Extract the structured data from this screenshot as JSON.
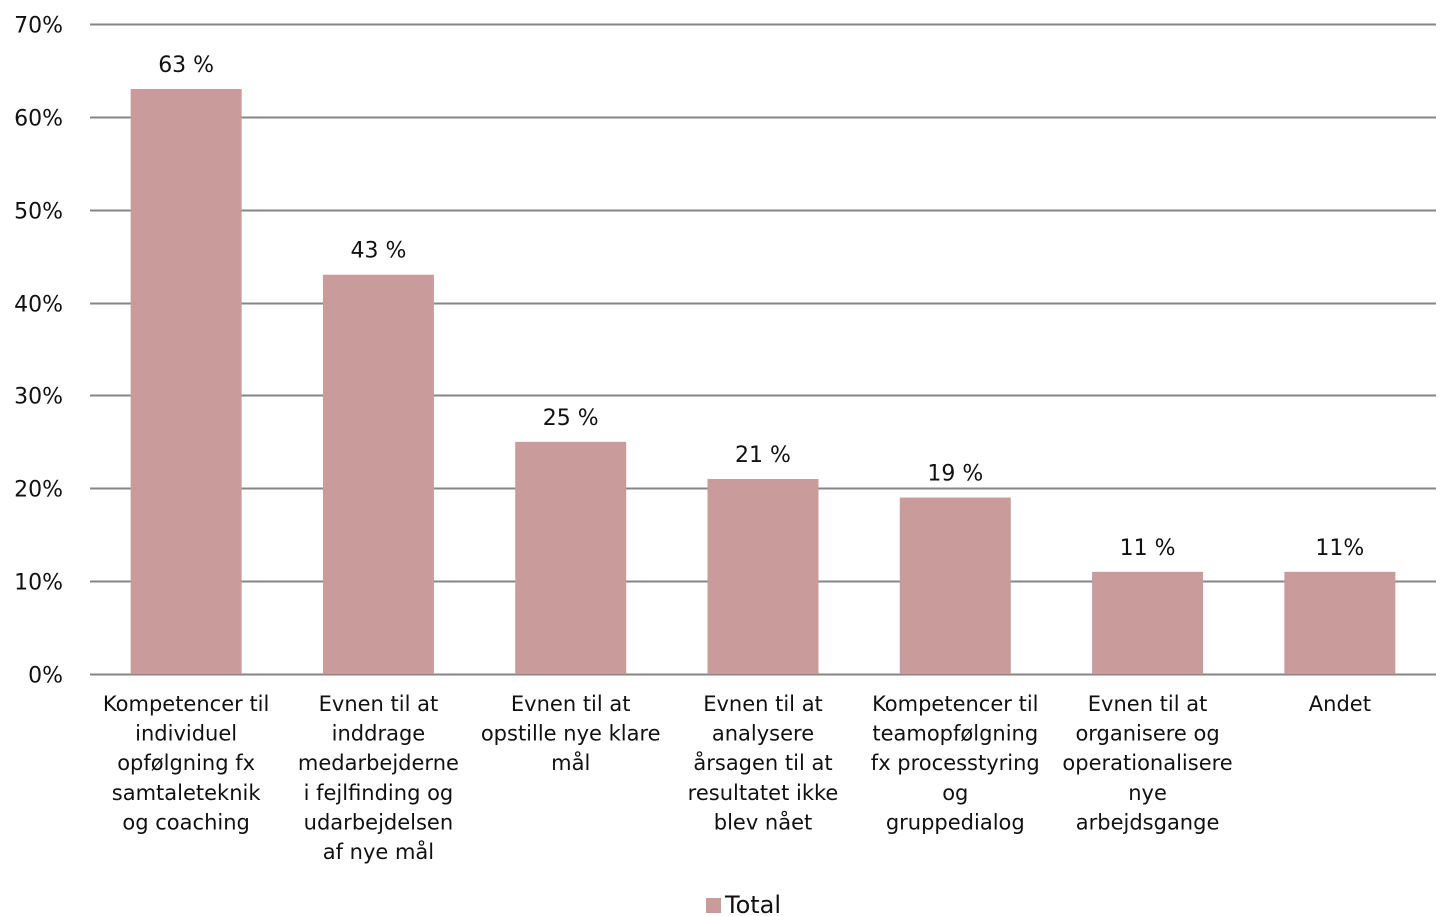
{
  "chart_data": {
    "type": "bar",
    "categories": [
      "Kompetencer til individuel opfølgning fx samtaleteknik og coaching",
      "Evnen til at inddrage medarbejderne i fejlfinding og udarbejdelsen af nye mål",
      "Evnen til at opstille nye klare mål",
      "Evnen til at analysere årsagen til at resultatet ikke blev nået",
      "Kompetencer til teamopfølgning fx processtyring og gruppedialog",
      "Evnen til at organisere og operationalisere nye arbejdsgange",
      "Andet"
    ],
    "category_lines": [
      [
        "Kompetencer til",
        "individuel",
        "opfølgning fx",
        "samtaleteknik",
        "og coaching"
      ],
      [
        "Evnen til at",
        "inddrage",
        "medarbejderne",
        "i fejlfinding og",
        "udarbejdelsen",
        "af nye mål"
      ],
      [
        "Evnen til at",
        "opstille nye klare",
        "mål"
      ],
      [
        "Evnen til at",
        "analysere",
        "årsagen til at",
        "resultatet ikke",
        "blev nået"
      ],
      [
        "Kompetencer til",
        "teamopfølgning",
        "fx processtyring",
        "og",
        "gruppedialog"
      ],
      [
        "Evnen til at",
        "organisere og",
        "operationalisere",
        "nye",
        "arbejdsgange"
      ],
      [
        "Andet"
      ]
    ],
    "series": [
      {
        "name": "Total",
        "values": [
          63,
          43,
          25,
          21,
          19,
          11,
          11
        ],
        "data_labels": [
          "63 %",
          "43 %",
          "25 %",
          "21 %",
          "19 %",
          "11 %",
          "11%"
        ],
        "color": "#c99b9b"
      }
    ],
    "y_ticks": [
      0,
      10,
      20,
      30,
      40,
      50,
      60,
      70
    ],
    "y_tick_labels": [
      "0%",
      "10%",
      "20%",
      "30%",
      "40%",
      "50%",
      "60%",
      "70%"
    ],
    "ylim": [
      0,
      70
    ],
    "grid": true,
    "legend": "bottom",
    "gridline_color": "#868686"
  }
}
